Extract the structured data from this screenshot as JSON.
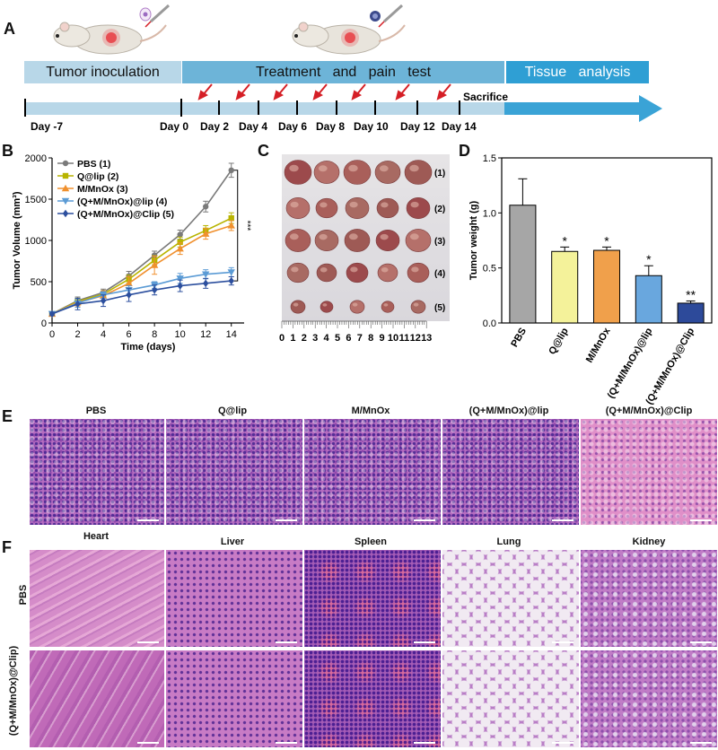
{
  "panel_letters": {
    "a": "A",
    "b": "B",
    "c": "C",
    "d": "D",
    "e": "E",
    "f": "F"
  },
  "schematic": {
    "phases": [
      "Tumor inoculation",
      "Treatment   and   pain   test",
      "Tissue   analysis"
    ],
    "days": [
      "Day -7",
      "Day 0",
      "Day 2",
      "Day 4",
      "Day 6",
      "Day 8",
      "Day 10",
      "Day 12",
      "Day 14"
    ],
    "sacrifice": "Sacrifice",
    "colors": {
      "phase1": "#b8d7e8",
      "phase2": "#6db4d8",
      "phase3": "#2f9fd4",
      "arrow": "#3aa3d6",
      "marker": "#d51f26"
    }
  },
  "panel_c": {
    "rows": [
      "(1)",
      "(2)",
      "(3)",
      "(4)",
      "(5)"
    ],
    "ruler": [
      "0",
      "1",
      "2",
      "3",
      "4",
      "5",
      "6",
      "7",
      "8",
      "9",
      "10",
      "11",
      "12",
      "13"
    ]
  },
  "chart_data": [
    {
      "type": "line",
      "xlabel": "Time (days)",
      "ylabel": "Tumor Volume (mm³)",
      "x": [
        0,
        2,
        4,
        6,
        8,
        10,
        12,
        14
      ],
      "xticks": [
        "0",
        "2",
        "4",
        "6",
        "8",
        "10",
        "12",
        "14"
      ],
      "yticks": [
        "0",
        "500",
        "1000",
        "1500",
        "2000"
      ],
      "xlim": [
        0,
        15
      ],
      "ylim": [
        0,
        2000
      ],
      "significance": "***",
      "series": [
        {
          "name": "PBS (1)",
          "color": "#7a7a7a",
          "marker": "circle",
          "values": [
            110,
            270,
            370,
            570,
            820,
            1070,
            1410,
            1850
          ],
          "err": [
            20,
            45,
            40,
            55,
            50,
            55,
            65,
            85
          ]
        },
        {
          "name": "Q@lip (2)",
          "color": "#b8b400",
          "marker": "square",
          "values": [
            110,
            260,
            350,
            530,
            760,
            980,
            1120,
            1270
          ],
          "err": [
            20,
            40,
            40,
            50,
            55,
            60,
            60,
            65
          ]
        },
        {
          "name": "M/MnOx (3)",
          "color": "#f0902e",
          "marker": "triangle-up",
          "values": [
            110,
            250,
            330,
            480,
            700,
            900,
            1080,
            1180
          ],
          "err": [
            20,
            45,
            60,
            80,
            110,
            70,
            65,
            60
          ]
        },
        {
          "name": "(Q+M/MnOx)@lip (4)",
          "color": "#5b9bd5",
          "marker": "triangle-down",
          "values": [
            110,
            240,
            340,
            400,
            460,
            540,
            590,
            615
          ],
          "err": [
            20,
            50,
            40,
            50,
            40,
            60,
            55,
            55
          ]
        },
        {
          "name": "(Q+M/MnOx)@Clip (5)",
          "color": "#2c4f9e",
          "marker": "diamond",
          "values": [
            110,
            230,
            270,
            340,
            400,
            450,
            480,
            510
          ],
          "err": [
            20,
            70,
            70,
            80,
            60,
            70,
            60,
            50
          ]
        }
      ]
    },
    {
      "type": "bar",
      "ylabel": "Tumor weight (g)",
      "categories": [
        "PBS",
        "Q@lip",
        "M/MnOx",
        "(Q+M/MnOx)@lip",
        "(Q+M/MnOx)@Clip"
      ],
      "values": [
        1.07,
        0.65,
        0.66,
        0.43,
        0.18
      ],
      "err": [
        0.24,
        0.04,
        0.03,
        0.09,
        0.02
      ],
      "significance": [
        "",
        "*",
        "*",
        "*",
        "**"
      ],
      "colors": [
        "#a6a6a6",
        "#f4f29a",
        "#f0a04b",
        "#69a7de",
        "#2d4a9a"
      ],
      "yticks": [
        "0.0",
        "0.5",
        "1.0",
        "1.5"
      ],
      "ylim": [
        0,
        1.5
      ]
    }
  ],
  "panel_e": {
    "titles": [
      "PBS",
      "Q@lip",
      "M/MnOx",
      "(Q+M/MnOx)@lip",
      "(Q+M/MnOx)@Clip"
    ]
  },
  "panel_f": {
    "organs": [
      "Heart",
      "Liver",
      "Spleen",
      "Lung",
      "Kidney"
    ],
    "rows": [
      "PBS",
      "(Q+M/MnOx)@Clip)"
    ]
  }
}
